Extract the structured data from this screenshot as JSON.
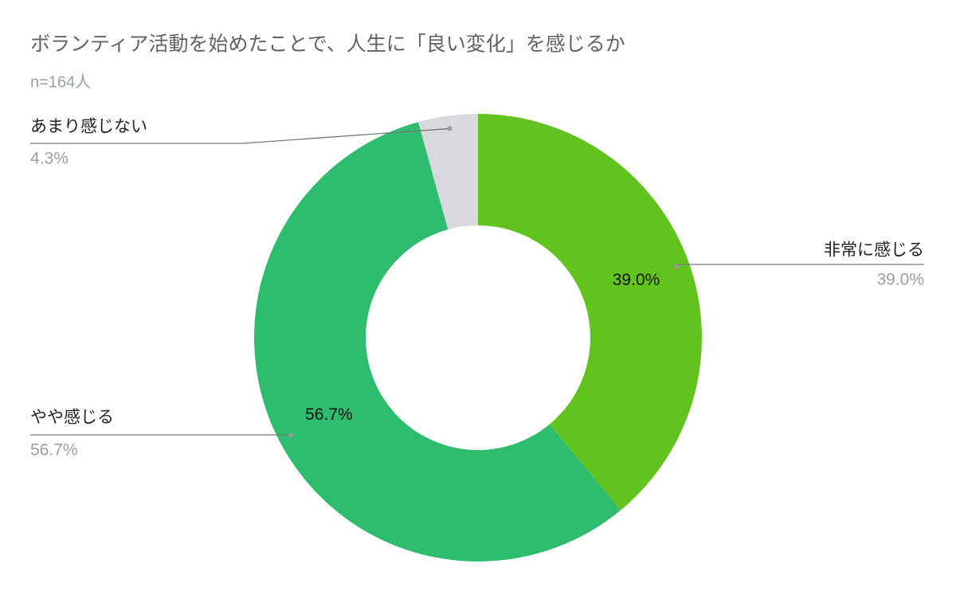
{
  "chart_data": {
    "type": "donut",
    "title": "ボランティア活動を始めたことで、人生に「良い変化」を感じるか",
    "subtitle": "n=164人",
    "categories": [
      "非常に感じる",
      "やや感じる",
      "あまり感じない"
    ],
    "values": [
      39.0,
      56.7,
      4.3
    ],
    "value_labels": [
      "39.0%",
      "56.7%",
      "4.3%"
    ],
    "colors": [
      "#62c31f",
      "#2ebd6e",
      "#d9d8dc"
    ]
  }
}
